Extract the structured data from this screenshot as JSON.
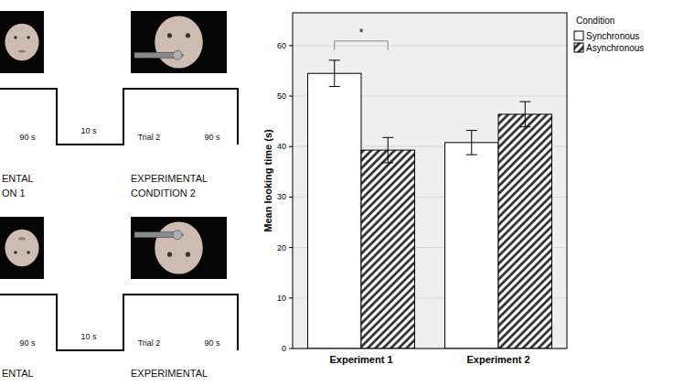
{
  "chart_data": {
    "type": "bar",
    "y_label": "Mean looking time (s)",
    "categories": [
      "Experiment 1",
      "Experiment 2"
    ],
    "series": [
      {
        "name": "Synchronous",
        "color": "#ffffff",
        "values": [
          54.5,
          40.8
        ],
        "errors": [
          2.6,
          2.4
        ]
      },
      {
        "name": "Asynchronous",
        "color": "#222222",
        "values": [
          39.3,
          46.4
        ],
        "errors": [
          2.5,
          2.5
        ]
      }
    ],
    "ylim": [
      0,
      66.5
    ],
    "yticks": [
      0,
      10,
      20,
      30,
      40,
      50,
      60
    ],
    "grid": true,
    "legend": "right",
    "legend_title": "Condition",
    "annotations": [
      {
        "text": "*",
        "category": "Experiment 1"
      }
    ]
  },
  "diagram": {
    "rows": [
      {
        "trial_labels": [
          "90 s",
          "10 s",
          "Trial 2",
          "90 s"
        ],
        "conditions": [
          [
            "ENTAL",
            "ON 1"
          ],
          [
            "EXPERIMENTAL",
            "CONDITION 2"
          ]
        ]
      },
      {
        "trial_labels": [
          "90 s",
          "10 s",
          "Trial 2",
          "90 s"
        ],
        "conditions": [
          [
            "ENTAL"
          ],
          [
            "EXPERIMENTAL"
          ]
        ]
      }
    ]
  }
}
